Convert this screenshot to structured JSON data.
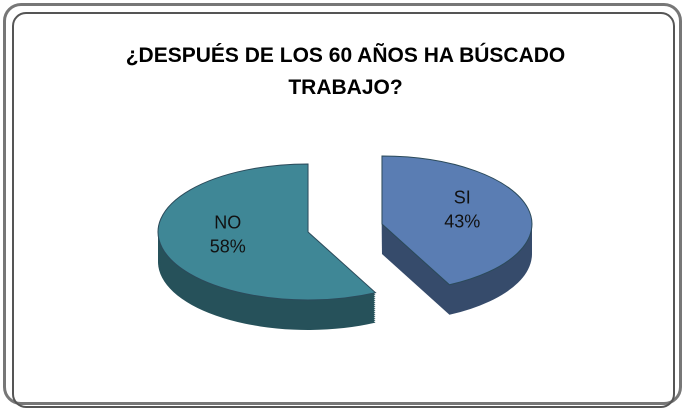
{
  "chart_data": {
    "type": "pie",
    "title": "¿DESPUÉS DE LOS 60 AÑOS HA BÚSCADO TRABAJO?",
    "categories": [
      "NO",
      "SI"
    ],
    "values": [
      58,
      43
    ],
    "value_labels": [
      "58%",
      "43%"
    ],
    "colors": [
      "#3f8796",
      "#5a7db3"
    ]
  }
}
